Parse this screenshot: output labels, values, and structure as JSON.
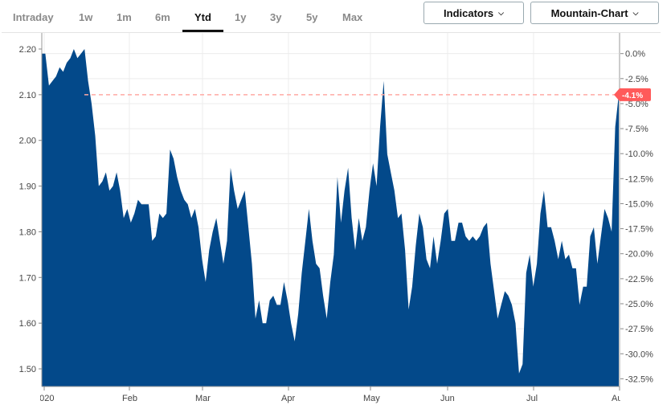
{
  "tabs": [
    {
      "label": "Intraday",
      "active": false
    },
    {
      "label": "1w",
      "active": false
    },
    {
      "label": "1m",
      "active": false
    },
    {
      "label": "6m",
      "active": false
    },
    {
      "label": "Ytd",
      "active": true
    },
    {
      "label": "1y",
      "active": false
    },
    {
      "label": "3y",
      "active": false
    },
    {
      "label": "5y",
      "active": false
    },
    {
      "label": "Max",
      "active": false
    }
  ],
  "buttons": {
    "indicators": "Indicators",
    "chart_type": "Mountain-Chart",
    "chevron_icon": "chevron-down-icon"
  },
  "colors": {
    "fill": "#03498a",
    "reference": "#ff5a5a",
    "grid": "#ececec"
  },
  "chart_data": {
    "type": "area",
    "x_range": [
      "2020-01-02",
      "2020-08-03"
    ],
    "x_ticks": [
      "2020",
      "Feb",
      "Mar",
      "Apr",
      "May",
      "Jun",
      "Jul",
      "Au"
    ],
    "y_ticks": [
      "2.20",
      "2.10",
      "2.00",
      "1.90",
      "1.80",
      "1.70",
      "1.60",
      "1.50"
    ],
    "ylim": [
      1.46,
      2.24
    ],
    "y2_ticks": [
      "0.0%",
      "-2.5%",
      "-5.0%",
      "-7.5%",
      "-10.0%",
      "-12.5%",
      "-15.0%",
      "-17.5%",
      "-20.0%",
      "-22.5%",
      "-25.0%",
      "-27.5%",
      "-30.0%",
      "-32.5%"
    ],
    "y2_base": 2.19,
    "current": {
      "value": 2.1,
      "label": "-4.1%"
    },
    "grid": true,
    "values": [
      2.19,
      2.19,
      2.12,
      2.13,
      2.14,
      2.16,
      2.15,
      2.17,
      2.18,
      2.2,
      2.18,
      2.19,
      2.2,
      2.13,
      2.08,
      2.01,
      1.9,
      1.91,
      1.93,
      1.89,
      1.9,
      1.93,
      1.89,
      1.83,
      1.85,
      1.82,
      1.84,
      1.87,
      1.86,
      1.86,
      1.86,
      1.78,
      1.79,
      1.84,
      1.83,
      1.84,
      1.98,
      1.96,
      1.92,
      1.89,
      1.87,
      1.86,
      1.83,
      1.85,
      1.81,
      1.74,
      1.69,
      1.76,
      1.8,
      1.83,
      1.78,
      1.73,
      1.78,
      1.94,
      1.89,
      1.85,
      1.87,
      1.89,
      1.81,
      1.73,
      1.61,
      1.65,
      1.6,
      1.6,
      1.65,
      1.66,
      1.64,
      1.64,
      1.69,
      1.65,
      1.6,
      1.56,
      1.62,
      1.71,
      1.78,
      1.85,
      1.78,
      1.73,
      1.72,
      1.66,
      1.61,
      1.69,
      1.75,
      1.92,
      1.82,
      1.89,
      1.94,
      1.83,
      1.76,
      1.83,
      1.78,
      1.81,
      1.89,
      1.95,
      1.9,
      2.03,
      2.13,
      1.97,
      1.93,
      1.89,
      1.83,
      1.84,
      1.76,
      1.63,
      1.68,
      1.77,
      1.84,
      1.81,
      1.74,
      1.72,
      1.79,
      1.73,
      1.78,
      1.84,
      1.85,
      1.78,
      1.78,
      1.82,
      1.82,
      1.79,
      1.78,
      1.79,
      1.78,
      1.79,
      1.81,
      1.82,
      1.73,
      1.67,
      1.61,
      1.64,
      1.67,
      1.66,
      1.64,
      1.6,
      1.49,
      1.51,
      1.71,
      1.75,
      1.68,
      1.73,
      1.84,
      1.89,
      1.81,
      1.81,
      1.78,
      1.74,
      1.78,
      1.74,
      1.75,
      1.72,
      1.72,
      1.64,
      1.68,
      1.68,
      1.79,
      1.81,
      1.73,
      1.79,
      1.85,
      1.83,
      1.8,
      2.03,
      2.1
    ]
  }
}
